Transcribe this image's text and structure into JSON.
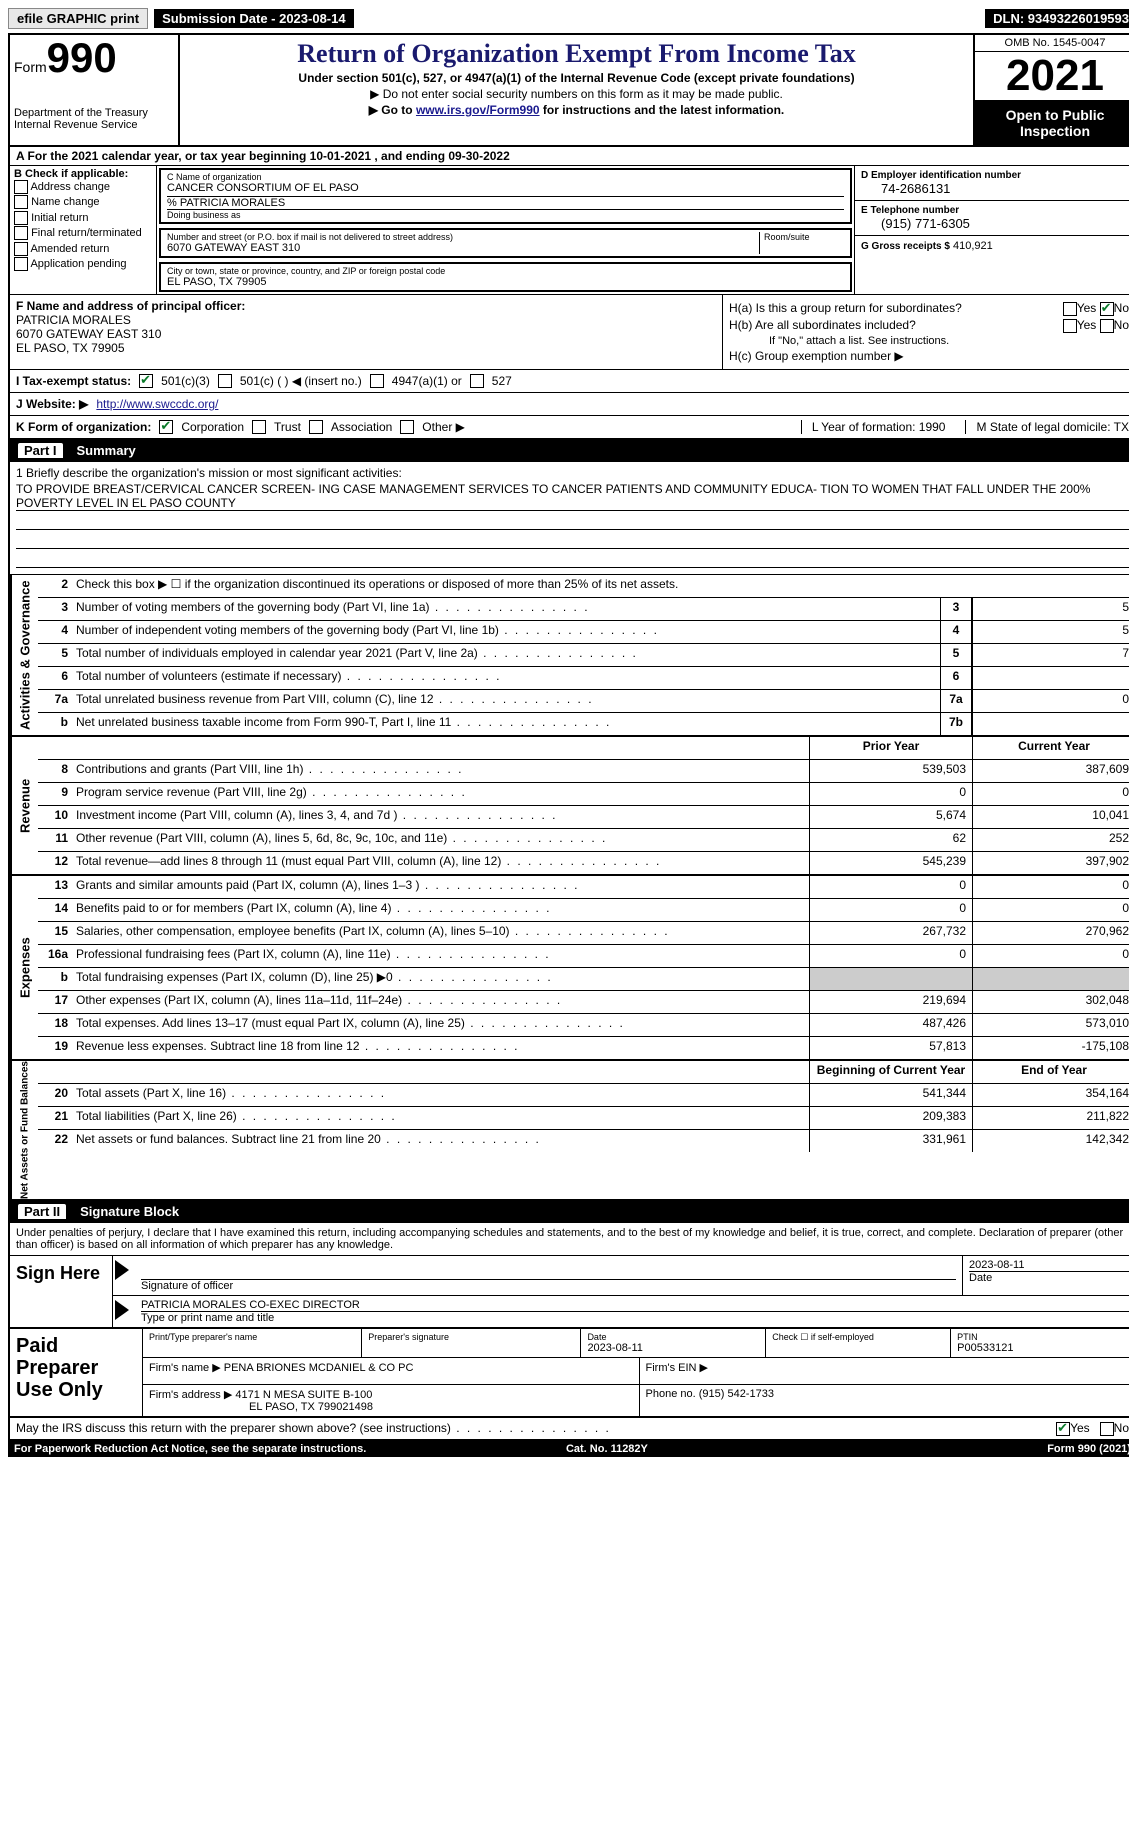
{
  "topbar": {
    "efile": "efile GRAPHIC print",
    "submission": "Submission Date - 2023-08-14",
    "dln": "DLN: 93493226019593"
  },
  "header": {
    "form_word": "Form",
    "form_num": "990",
    "dept": "Department of the Treasury\nInternal Revenue Service",
    "title": "Return of Organization Exempt From Income Tax",
    "sub1": "Under section 501(c), 527, or 4947(a)(1) of the Internal Revenue Code (except private foundations)",
    "sub2": "▶ Do not enter social security numbers on this form as it may be made public.",
    "sub3_pre": "▶ Go to ",
    "sub3_link": "www.irs.gov/Form990",
    "sub3_post": " for instructions and the latest information.",
    "omb": "OMB No. 1545-0047",
    "year": "2021",
    "otp": "Open to Public Inspection"
  },
  "rowA": "A For the 2021 calendar year, or tax year beginning 10-01-2021   , and ending 09-30-2022",
  "B": {
    "title": "B Check if applicable:",
    "items": [
      "Address change",
      "Name change",
      "Initial return",
      "Final return/terminated",
      "Amended return",
      "Application pending"
    ]
  },
  "C": {
    "label_name": "C Name of organization",
    "org": "CANCER CONSORTIUM OF EL PASO",
    "care_of": "% PATRICIA MORALES",
    "dba_label": "Doing business as",
    "addr_label": "Number and street (or P.O. box if mail is not delivered to street address)",
    "room_label": "Room/suite",
    "addr": "6070 GATEWAY EAST 310",
    "city_label": "City or town, state or province, country, and ZIP or foreign postal code",
    "city": "EL PASO, TX  79905"
  },
  "D": {
    "label": "D Employer identification number",
    "val": "74-2686131"
  },
  "E": {
    "label": "E Telephone number",
    "val": "(915) 771-6305"
  },
  "G": {
    "label": "G Gross receipts $",
    "val": "410,921"
  },
  "F": {
    "label": "F  Name and address of principal officer:",
    "name": "PATRICIA MORALES",
    "addr1": "6070 GATEWAY EAST 310",
    "addr2": "EL PASO, TX  79905"
  },
  "H": {
    "a": "H(a)  Is this a group return for subordinates?",
    "b": "H(b)  Are all subordinates included?",
    "b_note": "If \"No,\" attach a list. See instructions.",
    "c": "H(c)  Group exemption number ▶",
    "yes": "Yes",
    "no": "No"
  },
  "I": {
    "label": "I    Tax-exempt status:",
    "opts": [
      "501(c)(3)",
      "501(c) (  ) ◀ (insert no.)",
      "4947(a)(1) or",
      "527"
    ]
  },
  "J": {
    "label": "J   Website: ▶",
    "val": "http://www.swccdc.org/"
  },
  "K": {
    "label": "K Form of organization:",
    "opts": [
      "Corporation",
      "Trust",
      "Association",
      "Other ▶"
    ],
    "L": "L Year of formation: 1990",
    "M": "M State of legal domicile: TX"
  },
  "part1": {
    "num": "Part I",
    "title": "Summary"
  },
  "mission": {
    "q": "1   Briefly describe the organization's mission or most significant activities:",
    "text": "TO PROVIDE BREAST/CERVICAL CANCER SCREEN- ING CASE MANAGEMENT SERVICES TO CANCER PATIENTS AND COMMUNITY EDUCA- TION TO WOMEN THAT FALL UNDER THE 200% POVERTY LEVEL IN EL PASO COUNTY"
  },
  "gov": {
    "label": "Activities & Governance",
    "rows": [
      {
        "n": "2",
        "d": "Check this box ▶ ☐  if the organization discontinued its operations or disposed of more than 25% of its net assets."
      },
      {
        "n": "3",
        "d": "Number of voting members of the governing body (Part VI, line 1a)",
        "box": "3",
        "v": "5"
      },
      {
        "n": "4",
        "d": "Number of independent voting members of the governing body (Part VI, line 1b)",
        "box": "4",
        "v": "5"
      },
      {
        "n": "5",
        "d": "Total number of individuals employed in calendar year 2021 (Part V, line 2a)",
        "box": "5",
        "v": "7"
      },
      {
        "n": "6",
        "d": "Total number of volunteers (estimate if necessary)",
        "box": "6",
        "v": ""
      },
      {
        "n": "7a",
        "d": "Total unrelated business revenue from Part VIII, column (C), line 12",
        "box": "7a",
        "v": "0"
      },
      {
        "n": "b",
        "d": "Net unrelated business taxable income from Form 990-T, Part I, line 11",
        "box": "7b",
        "v": ""
      }
    ]
  },
  "rev": {
    "label": "Revenue",
    "hdr_prior": "Prior Year",
    "hdr_curr": "Current Year",
    "rows": [
      {
        "n": "8",
        "d": "Contributions and grants (Part VIII, line 1h)",
        "p": "539,503",
        "c": "387,609"
      },
      {
        "n": "9",
        "d": "Program service revenue (Part VIII, line 2g)",
        "p": "0",
        "c": "0"
      },
      {
        "n": "10",
        "d": "Investment income (Part VIII, column (A), lines 3, 4, and 7d )",
        "p": "5,674",
        "c": "10,041"
      },
      {
        "n": "11",
        "d": "Other revenue (Part VIII, column (A), lines 5, 6d, 8c, 9c, 10c, and 11e)",
        "p": "62",
        "c": "252"
      },
      {
        "n": "12",
        "d": "Total revenue—add lines 8 through 11 (must equal Part VIII, column (A), line 12)",
        "p": "545,239",
        "c": "397,902"
      }
    ]
  },
  "exp": {
    "label": "Expenses",
    "rows": [
      {
        "n": "13",
        "d": "Grants and similar amounts paid (Part IX, column (A), lines 1–3 )",
        "p": "0",
        "c": "0"
      },
      {
        "n": "14",
        "d": "Benefits paid to or for members (Part IX, column (A), line 4)",
        "p": "0",
        "c": "0"
      },
      {
        "n": "15",
        "d": "Salaries, other compensation, employee benefits (Part IX, column (A), lines 5–10)",
        "p": "267,732",
        "c": "270,962"
      },
      {
        "n": "16a",
        "d": "Professional fundraising fees (Part IX, column (A), line 11e)",
        "p": "0",
        "c": "0"
      },
      {
        "n": "b",
        "d": "Total fundraising expenses (Part IX, column (D), line 25) ▶0",
        "shaded": true
      },
      {
        "n": "17",
        "d": "Other expenses (Part IX, column (A), lines 11a–11d, 11f–24e)",
        "p": "219,694",
        "c": "302,048"
      },
      {
        "n": "18",
        "d": "Total expenses. Add lines 13–17 (must equal Part IX, column (A), line 25)",
        "p": "487,426",
        "c": "573,010"
      },
      {
        "n": "19",
        "d": "Revenue less expenses. Subtract line 18 from line 12",
        "p": "57,813",
        "c": "-175,108"
      }
    ]
  },
  "net": {
    "label": "Net Assets or Fund Balances",
    "hdr_prior": "Beginning of Current Year",
    "hdr_curr": "End of Year",
    "rows": [
      {
        "n": "20",
        "d": "Total assets (Part X, line 16)",
        "p": "541,344",
        "c": "354,164"
      },
      {
        "n": "21",
        "d": "Total liabilities (Part X, line 26)",
        "p": "209,383",
        "c": "211,822"
      },
      {
        "n": "22",
        "d": "Net assets or fund balances. Subtract line 21 from line 20",
        "p": "331,961",
        "c": "142,342"
      }
    ]
  },
  "part2": {
    "num": "Part II",
    "title": "Signature Block"
  },
  "sig": {
    "penalty": "Under penalties of perjury, I declare that I have examined this return, including accompanying schedules and statements, and to the best of my knowledge and belief, it is true, correct, and complete. Declaration of preparer (other than officer) is based on all information of which preparer has any knowledge.",
    "sign_here": "Sign Here",
    "sig_officer": "Signature of officer",
    "date": "Date",
    "sig_date": "2023-08-11",
    "name_title": "PATRICIA MORALES  CO-EXEC DIRECTOR",
    "type_name": "Type or print name and title"
  },
  "prep": {
    "title": "Paid Preparer Use Only",
    "h_name": "Print/Type preparer's name",
    "h_sig": "Preparer's signature",
    "h_date": "Date",
    "date": "2023-08-11",
    "h_check": "Check ☐ if self-employed",
    "h_ptin": "PTIN",
    "ptin": "P00533121",
    "firm_name_lbl": "Firm's name    ▶",
    "firm_name": "PENA BRIONES MCDANIEL & CO PC",
    "firm_ein_lbl": "Firm's EIN ▶",
    "firm_addr_lbl": "Firm's address ▶",
    "firm_addr1": "4171 N MESA SUITE B-100",
    "firm_addr2": "EL PASO, TX  799021498",
    "phone_lbl": "Phone no.",
    "phone": "(915) 542-1733"
  },
  "footer": {
    "discuss": "May the IRS discuss this return with the preparer shown above? (see instructions)",
    "yes": "Yes",
    "no": "No",
    "paperwork": "For Paperwork Reduction Act Notice, see the separate instructions.",
    "cat": "Cat. No. 11282Y",
    "formref": "Form 990 (2021)"
  }
}
